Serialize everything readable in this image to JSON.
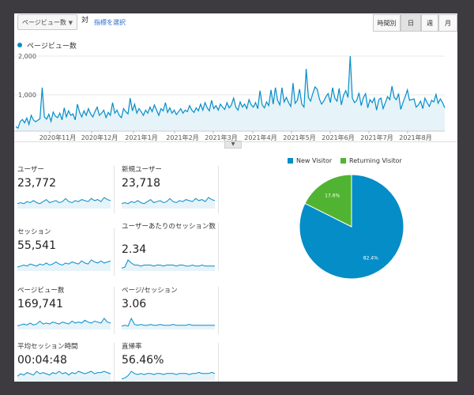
{
  "toolbar": {
    "metric_select": "ページビュー数",
    "vs_label": "対",
    "select_metric_link": "指標を選択",
    "granularity": [
      "時間別",
      "日",
      "週",
      "月"
    ],
    "active_granularity": "日"
  },
  "overview_chart": {
    "legend_label": "ページビュー数",
    "color": "#058dc7",
    "chart_data": {
      "type": "area",
      "title": "",
      "y_ticks": [
        "2,000",
        "1,000"
      ],
      "ylim": [
        0,
        2000
      ],
      "x_labels": [
        "2020年11月",
        "2020年12月",
        "2021年1月",
        "2021年2月",
        "2021年3月",
        "2021年4月",
        "2021年5月",
        "2021年6月",
        "2021年7月",
        "2021年8月"
      ],
      "series": [
        {
          "values": [
            120,
            80,
            260,
            310,
            220,
            350,
            180,
            420,
            300,
            250,
            290,
            330,
            1160,
            380,
            320,
            450,
            260,
            510,
            400,
            360,
            480,
            300,
            620,
            380,
            540,
            420,
            460,
            300,
            720,
            500,
            380,
            540,
            420,
            600,
            460,
            380,
            520,
            640,
            420,
            480,
            560,
            360,
            500,
            420,
            760,
            480,
            560,
            420,
            360,
            600,
            520,
            460,
            880,
            540,
            720,
            480,
            600,
            520,
            420,
            560,
            480,
            640,
            520,
            700,
            560,
            420,
            600,
            540,
            760,
            500,
            620,
            480,
            560,
            440,
            520,
            600,
            480,
            560,
            520,
            680,
            560,
            500,
            620,
            540,
            720,
            560,
            760,
            620,
            540,
            820,
            600,
            680,
            560,
            720,
            640,
            580,
            760,
            620,
            700,
            880,
            640,
            560,
            780,
            640,
            720,
            600,
            840,
            700,
            640,
            760,
            600,
            1080,
            700,
            620,
            780,
            680,
            1100,
            720,
            1160,
            820,
            700,
            1160,
            780,
            900,
            760,
            660,
            1280,
            740,
            820,
            1120,
            720,
            640,
            1660,
            900,
            800,
            1000,
            1180,
            1120,
            860,
            720,
            800,
            920,
            1000,
            760,
            1160,
            880,
            800,
            1140,
            700,
            960,
            1080,
            900,
            2000,
            880,
            760,
            820,
            1020,
            680,
            900,
            1000,
            620,
            840,
            760,
            880,
            560,
            840,
            880,
            600,
            760,
            920,
            840,
            1200,
            900,
            840,
            1000,
            580,
            760,
            920,
            1100,
            820,
            840,
            860,
            640,
            700,
            800,
            600,
            880,
            760,
            660,
            820,
            780,
            980,
            740,
            860,
            760,
            620
          ]
        }
      ]
    }
  },
  "summary_tiles": [
    {
      "label": "ユーザー",
      "value": "23,772",
      "trend": [
        4,
        5,
        4,
        6,
        5,
        7,
        5,
        4,
        6,
        8,
        5,
        6,
        7,
        5,
        6,
        9,
        6,
        5,
        7,
        6,
        8,
        7,
        6,
        9,
        7,
        8,
        6,
        10,
        8,
        7
      ]
    },
    {
      "label": "新規ユーザー",
      "value": "23,718",
      "trend": [
        4,
        5,
        4,
        6,
        5,
        7,
        5,
        4,
        6,
        8,
        5,
        6,
        7,
        5,
        6,
        9,
        6,
        5,
        7,
        6,
        8,
        7,
        6,
        9,
        7,
        8,
        6,
        10,
        8,
        7
      ]
    },
    {
      "label": "セッション",
      "value": "55,541",
      "trend": [
        3,
        4,
        5,
        4,
        6,
        5,
        4,
        6,
        5,
        7,
        5,
        6,
        8,
        6,
        5,
        7,
        6,
        8,
        7,
        6,
        9,
        7,
        6,
        10,
        8,
        7,
        9,
        7,
        8,
        9
      ]
    },
    {
      "label": "ユーザーあたりのセッション数",
      "value": "2.34",
      "trend": [
        2,
        3,
        10,
        7,
        5,
        5,
        4,
        5,
        5,
        5,
        4,
        5,
        5,
        4,
        5,
        5,
        5,
        4,
        5,
        5,
        4,
        4,
        5,
        4,
        4,
        5,
        4,
        4,
        4,
        4
      ]
    },
    {
      "label": "ページビュー数",
      "value": "169,741",
      "trend": [
        3,
        4,
        5,
        4,
        6,
        4,
        5,
        8,
        5,
        6,
        5,
        7,
        6,
        5,
        7,
        6,
        5,
        8,
        6,
        7,
        6,
        9,
        7,
        6,
        8,
        7,
        6,
        11,
        7,
        6
      ]
    },
    {
      "label": "ページ/セッション",
      "value": "3.06",
      "trend": [
        3,
        4,
        3,
        12,
        5,
        4,
        5,
        4,
        4,
        5,
        4,
        4,
        5,
        4,
        4,
        4,
        5,
        4,
        4,
        4,
        4,
        5,
        4,
        4,
        4,
        4,
        4,
        4,
        4,
        4
      ]
    },
    {
      "label": "平均セッション時間",
      "value": "00:04:48",
      "trend": [
        3,
        5,
        4,
        6,
        5,
        4,
        7,
        5,
        6,
        5,
        4,
        6,
        5,
        7,
        5,
        6,
        4,
        6,
        5,
        7,
        6,
        5,
        6,
        7,
        5,
        6,
        6,
        7,
        6,
        5
      ]
    },
    {
      "label": "直帰率",
      "value": "56.46%",
      "trend": [
        1,
        2,
        4,
        8,
        6,
        5,
        6,
        5,
        6,
        6,
        5,
        6,
        6,
        5,
        6,
        6,
        6,
        5,
        6,
        6,
        6,
        5,
        6,
        6,
        7,
        6,
        6,
        6,
        7,
        6
      ]
    }
  ],
  "pie": {
    "legend": [
      {
        "label": "New Visitor",
        "color": "#058dc7"
      },
      {
        "label": "Returning Visitor",
        "color": "#50b432"
      }
    ],
    "chart_data": {
      "type": "pie",
      "labels": [
        "New Visitor",
        "Returning Visitor"
      ],
      "values": [
        82.4,
        17.6
      ],
      "value_labels": [
        "82.4%",
        "17.6%"
      ]
    }
  }
}
